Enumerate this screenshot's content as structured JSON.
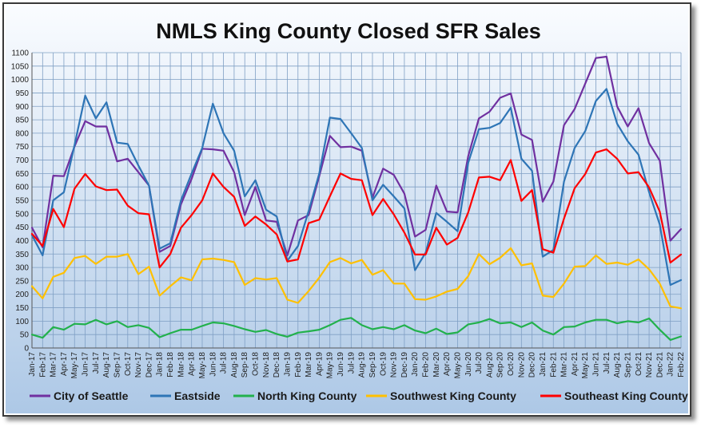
{
  "chart_data": {
    "type": "line",
    "title": "NMLS King County Closed SFR Sales",
    "xlabel": "",
    "ylabel": "",
    "ylim": [
      0,
      1100
    ],
    "yticks": [
      0,
      50,
      100,
      150,
      200,
      250,
      300,
      350,
      400,
      450,
      500,
      550,
      600,
      650,
      700,
      750,
      800,
      850,
      900,
      950,
      1000,
      1050,
      1100
    ],
    "grid": true,
    "legend_position": "bottom",
    "categories": [
      "Jan-17",
      "Feb-17",
      "Mar-17",
      "Apr-17",
      "May-17",
      "Jun-17",
      "Jul-17",
      "Aug-17",
      "Sep-17",
      "Oct-17",
      "Nov-17",
      "Dec-17",
      "Jan-18",
      "Feb-18",
      "Mar-18",
      "Apr-18",
      "May-18",
      "Jun-18",
      "Jul-18",
      "Aug-18",
      "Sep-18",
      "Oct-18",
      "Nov-18",
      "Dec-18",
      "Jan-19",
      "Feb-19",
      "Mar-19",
      "Apr-19",
      "May-19",
      "Jun-19",
      "Jul-19",
      "Aug-19",
      "Sep-19",
      "Oct-19",
      "Nov-19",
      "Dec-19",
      "Jan-20",
      "Feb-20",
      "Mar-20",
      "Apr-20",
      "May-20",
      "Jun-20",
      "Jul-20",
      "Aug-20",
      "Sep-20",
      "Oct-20",
      "Nov-20",
      "Dec-20",
      "Jan-21",
      "Feb-21",
      "Mar-21",
      "Apr-21",
      "May-21",
      "Jun-21",
      "Jul-21",
      "Aug-21",
      "Sep-21",
      "Oct-21",
      "Nov-21",
      "Dec-21",
      "Jan-22",
      "Feb-22"
    ],
    "tick_labels": [
      "Jan-17",
      "Mar-17",
      "May-17",
      "Jul-17",
      "Sep-17",
      "Nov-17",
      "Jan-18",
      "Mar-18",
      "May-18",
      "Jul-18",
      "Sep-18",
      "Nov-18",
      "Jan-19",
      "Mar-19",
      "May-19",
      "Jul-19",
      "Sep-19",
      "Nov-19",
      "Jan-20",
      "Mar-20",
      "May-20",
      "Jul-20",
      "Sep-20",
      "Nov-20",
      "Jan-21",
      "Mar-21",
      "May-21",
      "Jul-21",
      "Sep-21",
      "Nov-21",
      "Jan-22",
      "Feb-17",
      "Apr-17",
      "Jun-17",
      "Aug-17",
      "Oct-17",
      "Dec-17",
      "Feb-18",
      "Apr-18",
      "Jun-18",
      "Aug-18",
      "Oct-18",
      "Dec-18",
      "Feb-19",
      "Apr-19",
      "Jun-19",
      "Aug-19",
      "Oct-19",
      "Dec-19",
      "Feb-20",
      "Apr-20",
      "Jun-20",
      "Aug-20",
      "Oct-20",
      "Dec-20",
      "Feb-21",
      "Apr-21",
      "Jun-21",
      "Aug-21",
      "Oct-21",
      "Dec-21",
      "Feb-22"
    ],
    "series": [
      {
        "name": "City of Seattle",
        "color": "#7030a0",
        "values": [
          448,
          375,
          642,
          640,
          750,
          845,
          825,
          825,
          695,
          705,
          655,
          605,
          358,
          380,
          535,
          630,
          742,
          740,
          735,
          655,
          495,
          600,
          475,
          470,
          345,
          475,
          495,
          640,
          790,
          748,
          750,
          735,
          560,
          668,
          645,
          575,
          415,
          440,
          605,
          508,
          505,
          715,
          855,
          880,
          932,
          948,
          795,
          775,
          545,
          620,
          830,
          890,
          985,
          1080,
          1085,
          900,
          825,
          893,
          763,
          698,
          400,
          443
        ]
      },
      {
        "name": "Eastside",
        "color": "#2e75b6",
        "values": [
          420,
          345,
          550,
          580,
          755,
          940,
          855,
          915,
          765,
          760,
          680,
          605,
          370,
          390,
          550,
          650,
          745,
          910,
          800,
          735,
          565,
          625,
          515,
          490,
          325,
          380,
          510,
          650,
          858,
          853,
          800,
          745,
          550,
          608,
          565,
          520,
          290,
          355,
          503,
          470,
          435,
          690,
          815,
          820,
          838,
          895,
          705,
          660,
          340,
          365,
          620,
          745,
          808,
          920,
          965,
          835,
          770,
          720,
          580,
          460,
          235,
          253
        ]
      },
      {
        "name": "North King County",
        "color": "#22b14c",
        "values": [
          50,
          38,
          78,
          68,
          90,
          88,
          105,
          88,
          100,
          78,
          85,
          75,
          40,
          55,
          68,
          68,
          82,
          95,
          92,
          82,
          70,
          60,
          67,
          52,
          42,
          57,
          62,
          68,
          85,
          105,
          112,
          85,
          70,
          78,
          70,
          85,
          65,
          55,
          72,
          52,
          58,
          88,
          95,
          108,
          92,
          95,
          78,
          95,
          65,
          50,
          78,
          80,
          95,
          105,
          105,
          92,
          100,
          95,
          110,
          68,
          30,
          43
        ]
      },
      {
        "name": "Southwest King County",
        "color": "#ffc000",
        "values": [
          230,
          185,
          265,
          280,
          335,
          343,
          313,
          340,
          340,
          350,
          275,
          303,
          195,
          230,
          263,
          252,
          330,
          333,
          328,
          320,
          235,
          260,
          255,
          260,
          180,
          168,
          212,
          262,
          320,
          335,
          315,
          328,
          273,
          290,
          240,
          240,
          182,
          180,
          192,
          210,
          220,
          268,
          350,
          312,
          336,
          372,
          308,
          315,
          195,
          190,
          240,
          303,
          305,
          345,
          313,
          318,
          310,
          330,
          293,
          240,
          155,
          148
        ]
      },
      {
        "name": "Southeast King County",
        "color": "#ff0000",
        "values": [
          425,
          380,
          518,
          450,
          593,
          648,
          602,
          588,
          590,
          530,
          502,
          498,
          300,
          350,
          448,
          495,
          550,
          650,
          600,
          563,
          455,
          490,
          460,
          423,
          322,
          330,
          465,
          478,
          565,
          650,
          630,
          625,
          495,
          555,
          498,
          430,
          348,
          348,
          448,
          385,
          410,
          505,
          635,
          638,
          625,
          700,
          548,
          588,
          368,
          355,
          482,
          595,
          648,
          728,
          740,
          705,
          650,
          655,
          598,
          508,
          318,
          348
        ]
      }
    ]
  }
}
